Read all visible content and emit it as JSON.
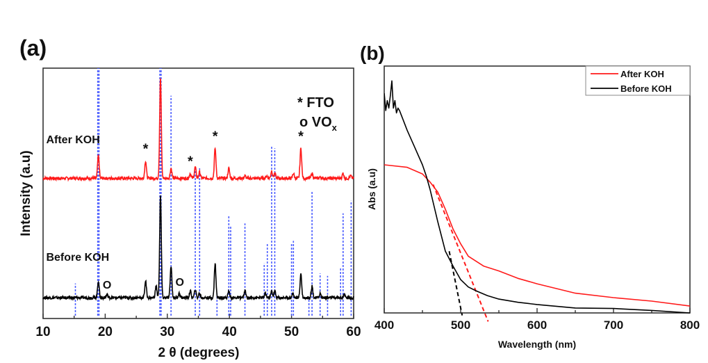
{
  "chart_data": [
    {
      "panel_label": "(a)",
      "type": "line",
      "xlabel": "2 θ (degrees)",
      "ylabel": "Intensity (a.u)",
      "xlim": [
        10,
        60
      ],
      "ylim": [
        0,
        1
      ],
      "xticks": [
        10,
        20,
        30,
        40,
        50,
        60
      ],
      "grid": false,
      "legend_text": [
        "* FTO",
        "o VO",
        "x"
      ],
      "colors": {
        "after": "#ff1a1a",
        "before": "#000000",
        "reference": "#4a5cff"
      },
      "series": [
        {
          "name": "After KOH",
          "baseline": 0.56,
          "peaks": [
            [
              18.9,
              0.65
            ],
            [
              26.5,
              0.63
            ],
            [
              28.9,
              0.96
            ],
            [
              30.6,
              0.6
            ],
            [
              33.7,
              0.58
            ],
            [
              34.5,
              0.605
            ],
            [
              35.2,
              0.585
            ],
            [
              37.7,
              0.68
            ],
            [
              39.9,
              0.6
            ],
            [
              42.5,
              0.57
            ],
            [
              46.0,
              0.57
            ],
            [
              46.8,
              0.59
            ],
            [
              47.3,
              0.58
            ],
            [
              50.3,
              0.58
            ],
            [
              51.5,
              0.68
            ],
            [
              53.3,
              0.58
            ],
            [
              54.6,
              0.565
            ],
            [
              58.3,
              0.58
            ],
            [
              59.5,
              0.57
            ]
          ]
        },
        {
          "name": "Before KOH",
          "baseline": 0.083,
          "peaks": [
            [
              18.9,
              0.15
            ],
            [
              20.3,
              0.095
            ],
            [
              26.5,
              0.15
            ],
            [
              28.2,
              0.13
            ],
            [
              28.9,
              0.49
            ],
            [
              30.6,
              0.21
            ],
            [
              31.9,
              0.1
            ],
            [
              33.7,
              0.11
            ],
            [
              34.5,
              0.115
            ],
            [
              35.2,
              0.1
            ],
            [
              37.7,
              0.22
            ],
            [
              39.9,
              0.11
            ],
            [
              42.5,
              0.11
            ],
            [
              45.8,
              0.1
            ],
            [
              46.8,
              0.11
            ],
            [
              47.3,
              0.11
            ],
            [
              50.2,
              0.1
            ],
            [
              51.5,
              0.18
            ],
            [
              53.3,
              0.13
            ],
            [
              54.6,
              0.1
            ],
            [
              58.5,
              0.095
            ]
          ]
        }
      ],
      "reference_lines": [
        [
          15.2,
          0.14
        ],
        [
          18.8,
          1.0
        ],
        [
          19.0,
          1.0
        ],
        [
          28.8,
          1.0
        ],
        [
          29.0,
          1.0
        ],
        [
          30.6,
          0.89
        ],
        [
          34.5,
          0.6
        ],
        [
          35.2,
          0.6
        ],
        [
          38.0,
          0.1
        ],
        [
          39.9,
          0.41
        ],
        [
          40.2,
          0.37
        ],
        [
          42.5,
          0.38
        ],
        [
          45.6,
          0.22
        ],
        [
          46.1,
          0.3
        ],
        [
          46.8,
          0.69
        ],
        [
          47.3,
          0.68
        ],
        [
          50.0,
          0.3
        ],
        [
          50.3,
          0.31
        ],
        [
          52.8,
          0.08
        ],
        [
          53.3,
          0.51
        ],
        [
          54.6,
          0.18
        ],
        [
          55.8,
          0.17
        ],
        [
          57.9,
          0.2
        ],
        [
          58.3,
          0.42
        ],
        [
          59.6,
          0.47
        ]
      ],
      "annotations": [
        {
          "text": "After KOH",
          "x": 10.5,
          "y": 0.7
        },
        {
          "text": "Before KOH",
          "x": 10.5,
          "y": 0.23
        },
        {
          "text": "*",
          "x": 26.5,
          "y": 0.66
        },
        {
          "text": "*",
          "x": 33.7,
          "y": 0.61
        },
        {
          "text": "*",
          "x": 37.7,
          "y": 0.71
        },
        {
          "text": "*",
          "x": 51.5,
          "y": 0.71
        },
        {
          "text": "O",
          "x": 20.3,
          "y": 0.12
        },
        {
          "text": "O",
          "x": 32.0,
          "y": 0.13
        }
      ]
    },
    {
      "panel_label": "(b)",
      "type": "line",
      "xlabel": "Wavelength (nm)",
      "ylabel": "Abs (a.u)",
      "xlim": [
        400,
        800
      ],
      "ylim": [
        0,
        1
      ],
      "xticks": [
        400,
        500,
        600,
        700,
        800
      ],
      "grid": false,
      "legend_placement": "top-right",
      "series": [
        {
          "name": "After KOH",
          "color": "#ff1a1a",
          "x": [
            400,
            430,
            450,
            460,
            470,
            480,
            490,
            500,
            510,
            530,
            550,
            575,
            600,
            650,
            700,
            750,
            800
          ],
          "y": [
            0.6,
            0.59,
            0.563,
            0.53,
            0.49,
            0.42,
            0.34,
            0.28,
            0.23,
            0.19,
            0.17,
            0.14,
            0.118,
            0.08,
            0.062,
            0.048,
            0.028
          ]
        },
        {
          "name": "Before KOH",
          "color": "#000000",
          "x": [
            400,
            402,
            404,
            406,
            408,
            410,
            412,
            414,
            416,
            418,
            420,
            425,
            430,
            440,
            450,
            455,
            460,
            470,
            480,
            490,
            500,
            510,
            520,
            535,
            550,
            575,
            600,
            650,
            700,
            750,
            800
          ],
          "y": [
            0.89,
            0.82,
            0.86,
            0.83,
            0.88,
            0.94,
            0.83,
            0.86,
            0.81,
            0.83,
            0.82,
            0.78,
            0.74,
            0.67,
            0.6,
            0.555,
            0.5,
            0.37,
            0.25,
            0.19,
            0.135,
            0.105,
            0.09,
            0.07,
            0.056,
            0.043,
            0.034,
            0.02,
            0.018,
            0.01,
            0.0
          ]
        }
      ],
      "tangent_lines": [
        {
          "color": "#000000",
          "from": [
            485,
            0.25
          ],
          "to": [
            502,
            -0.01
          ]
        },
        {
          "color": "#ff1a1a",
          "from": [
            464,
            0.52
          ],
          "to": [
            536,
            -0.035
          ]
        }
      ]
    }
  ]
}
